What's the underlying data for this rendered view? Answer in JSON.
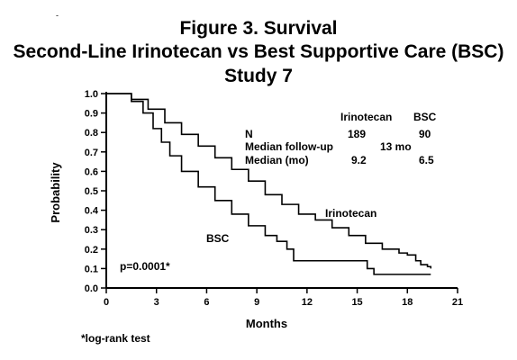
{
  "stray_mark": "-",
  "title_lines": [
    "Figure 3. Survival",
    "Second-Line Irinotecan vs Best Supportive Care (BSC)",
    "Study 7"
  ],
  "chart_data": {
    "type": "line",
    "title": "Figure 3. Survival",
    "subtitle": "Second-Line Irinotecan vs Best Supportive Care (BSC) Study 7",
    "xlabel": "Months",
    "ylabel": "Probability",
    "xlim": [
      0,
      21
    ],
    "ylim": [
      0,
      1.0
    ],
    "xticks": [
      0,
      3,
      6,
      9,
      12,
      15,
      18,
      21
    ],
    "yticks": [
      0.0,
      0.1,
      0.2,
      0.3,
      0.4,
      0.5,
      0.6,
      0.7,
      0.8,
      0.9,
      1.0
    ],
    "ytick_labels": [
      "0.0",
      "0.1",
      "0.2",
      "0.3",
      "0.4",
      "0.5",
      "0.6",
      "0.7",
      "0.8",
      "0.9",
      "1.0"
    ],
    "grid": false,
    "series": [
      {
        "name": "Irinotecan",
        "step": true,
        "x": [
          0,
          1.5,
          2.5,
          3.5,
          4.5,
          5.5,
          6.5,
          7.5,
          8.5,
          9.5,
          10.5,
          11.5,
          12.5,
          13.5,
          14.5,
          15.5,
          16.5,
          17.5,
          18.0,
          18.5,
          18.8,
          19.2,
          19.4
        ],
        "y": [
          1.0,
          0.97,
          0.92,
          0.85,
          0.79,
          0.73,
          0.67,
          0.61,
          0.55,
          0.48,
          0.43,
          0.38,
          0.35,
          0.31,
          0.27,
          0.23,
          0.2,
          0.18,
          0.17,
          0.14,
          0.12,
          0.11,
          0.1
        ]
      },
      {
        "name": "BSC",
        "step": true,
        "x": [
          0,
          1.5,
          2.2,
          2.8,
          3.3,
          3.8,
          4.5,
          5.5,
          6.5,
          7.5,
          8.5,
          9.5,
          10.2,
          10.8,
          11.2,
          13.0,
          15.0,
          15.6,
          16.0,
          19.4
        ],
        "y": [
          1.0,
          0.96,
          0.9,
          0.82,
          0.75,
          0.68,
          0.6,
          0.52,
          0.45,
          0.38,
          0.32,
          0.27,
          0.24,
          0.2,
          0.14,
          0.14,
          0.14,
          0.1,
          0.07,
          0.07
        ]
      }
    ],
    "curve_labels": [
      {
        "text": "Irinotecan",
        "x": 13.5,
        "y": 0.35
      },
      {
        "text": "BSC",
        "x": 7.5,
        "y": 0.24
      }
    ],
    "summary_table": {
      "columns": [
        "",
        "Irinotecan",
        "BSC"
      ],
      "rows": [
        {
          "label": "N",
          "irinotecan": "189",
          "bsc": "90"
        },
        {
          "label": "Median follow-up",
          "shared": "13 mo"
        },
        {
          "label": "Median (mo)",
          "irinotecan": "9.2",
          "bsc": "6.5"
        }
      ]
    },
    "annotations": [
      "p=0.0001*"
    ],
    "footnote": "*log-rank test"
  }
}
